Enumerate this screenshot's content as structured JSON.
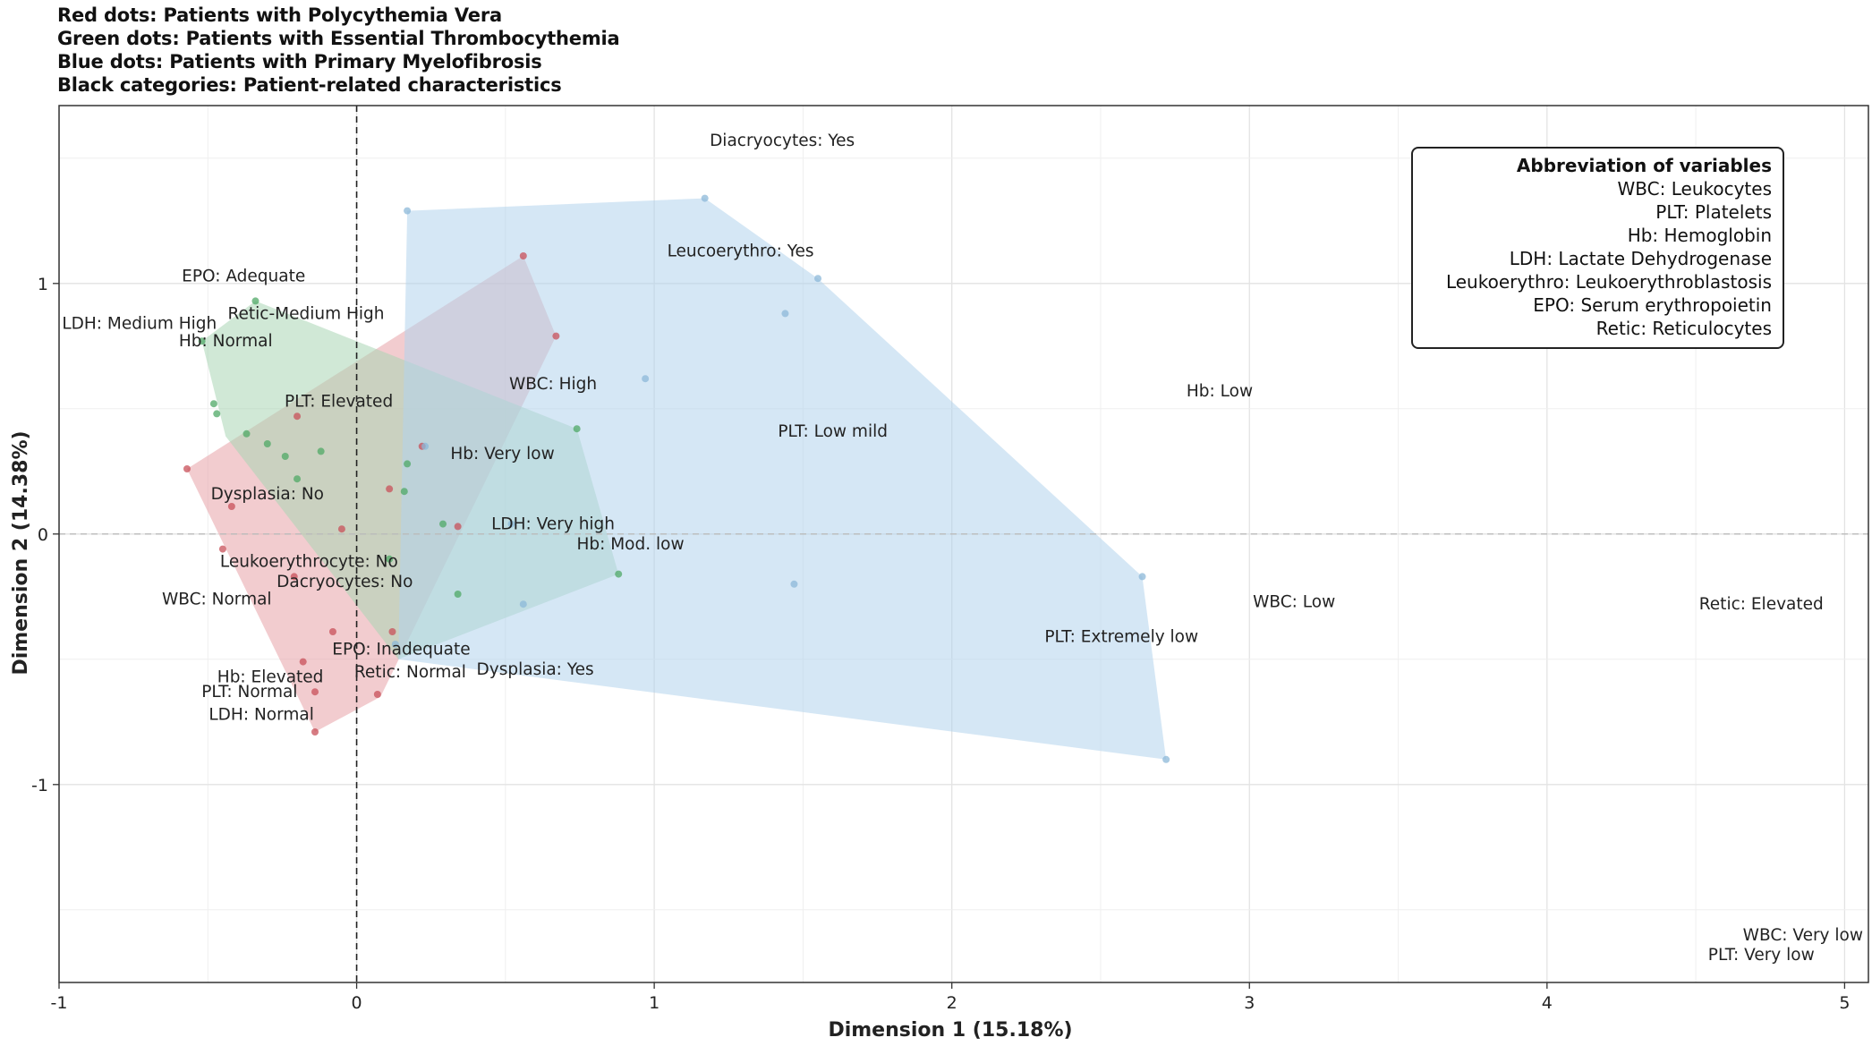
{
  "header": {
    "line1": "Red dots: Patients with Polycythemia Vera",
    "line2": "Green dots: Patients with Essential Thrombocythemia",
    "line3": "Blue dots: Patients with Primary Myelofibrosis",
    "line4": "Black categories: Patient-related characteristics"
  },
  "legend": {
    "title": "Abbreviation of variables",
    "items": [
      {
        "abbr": "WBC",
        "text": "WBC: Leukocytes"
      },
      {
        "abbr": "PLT",
        "text": "PLT: Platelets"
      },
      {
        "abbr": "Hb",
        "text": "Hb: Hemoglobin"
      },
      {
        "abbr": "LDH",
        "text": "LDH: Lactate Dehydrogenase"
      },
      {
        "abbr": "Leukoerythro",
        "text": "Leukoerythro: Leukoerythroblastosis"
      },
      {
        "abbr": "EPO",
        "text": "EPO: Serum erythropoietin"
      },
      {
        "abbr": "Retic",
        "text": "Retic: Reticulocytes"
      }
    ]
  },
  "colors": {
    "red": "#e8a3a8",
    "green": "#a9d6b4",
    "blue": "#b3d4ec",
    "red_dot": "#c8505a",
    "green_dot": "#4fa865",
    "blue_dot": "#8cb8d8"
  },
  "chart_data": {
    "type": "scatter",
    "xlabel": "Dimension 1 (15.18%)",
    "ylabel": "Dimension 2 (14.38%)",
    "xlim": [
      -1,
      5.08
    ],
    "ylim": [
      -1.79,
      1.71
    ],
    "xticks": [
      -1,
      0,
      1,
      2,
      3,
      4,
      5
    ],
    "yticks": [
      -1,
      0,
      1
    ],
    "grid": true,
    "reference_lines": {
      "x": 0,
      "y": 0
    },
    "hulls": [
      {
        "name": "Polycythemia Vera",
        "color_key": "red",
        "points": [
          [
            -0.57,
            0.26
          ],
          [
            0.56,
            1.11
          ],
          [
            0.67,
            0.79
          ],
          [
            0.08,
            -0.65
          ],
          [
            -0.14,
            -0.79
          ]
        ]
      },
      {
        "name": "Essential Thrombocythemia",
        "color_key": "green",
        "points": [
          [
            -0.52,
            0.77
          ],
          [
            -0.34,
            0.93
          ],
          [
            0.74,
            0.42
          ],
          [
            0.88,
            -0.16
          ],
          [
            0.14,
            -0.5
          ],
          [
            -0.44,
            0.39
          ]
        ]
      },
      {
        "name": "Primary Myelofibrosis",
        "color_key": "blue",
        "points": [
          [
            0.17,
            1.29
          ],
          [
            1.17,
            1.34
          ],
          [
            1.55,
            1.02
          ],
          [
            2.64,
            -0.17
          ],
          [
            2.72,
            -0.9
          ],
          [
            0.14,
            -0.5
          ]
        ]
      }
    ],
    "patients": [
      {
        "group": "red",
        "points": [
          [
            -0.57,
            0.26
          ],
          [
            0.56,
            1.11
          ],
          [
            0.67,
            0.79
          ],
          [
            -0.14,
            -0.79
          ],
          [
            0.07,
            -0.64
          ],
          [
            -0.45,
            -0.06
          ],
          [
            -0.42,
            0.11
          ],
          [
            -0.21,
            -0.17
          ],
          [
            -0.08,
            -0.39
          ],
          [
            0.12,
            -0.39
          ],
          [
            -0.18,
            -0.51
          ],
          [
            0.11,
            0.18
          ],
          [
            -0.05,
            0.02
          ],
          [
            0.34,
            0.03
          ],
          [
            -0.14,
            -0.63
          ],
          [
            -0.2,
            0.47
          ],
          [
            0.22,
            0.35
          ]
        ]
      },
      {
        "group": "green",
        "points": [
          [
            -0.34,
            0.93
          ],
          [
            -0.52,
            0.77
          ],
          [
            -0.48,
            0.52
          ],
          [
            -0.47,
            0.48
          ],
          [
            0.74,
            0.42
          ],
          [
            0.88,
            -0.16
          ],
          [
            0.11,
            -0.1
          ],
          [
            0.29,
            0.04
          ],
          [
            0.34,
            -0.24
          ],
          [
            -0.24,
            0.31
          ],
          [
            -0.12,
            0.33
          ],
          [
            -0.3,
            0.36
          ],
          [
            -0.2,
            0.22
          ],
          [
            0.16,
            0.17
          ],
          [
            0.17,
            0.28
          ],
          [
            -0.37,
            0.4
          ]
        ]
      },
      {
        "group": "blue",
        "points": [
          [
            0.17,
            1.29
          ],
          [
            1.17,
            1.34
          ],
          [
            1.55,
            1.02
          ],
          [
            1.44,
            0.88
          ],
          [
            0.97,
            0.62
          ],
          [
            2.64,
            -0.17
          ],
          [
            2.72,
            -0.9
          ],
          [
            1.47,
            -0.2
          ],
          [
            0.56,
            -0.28
          ],
          [
            0.13,
            -0.44
          ],
          [
            0.52,
            0.04
          ],
          [
            0.23,
            0.35
          ]
        ]
      }
    ],
    "categories": [
      {
        "text": "Diacryocytes: Yes",
        "x": 1.43,
        "y": 1.57
      },
      {
        "text": "Leucoerythro: Yes",
        "x": 1.29,
        "y": 1.13
      },
      {
        "text": "EPO: Adequate",
        "x": -0.38,
        "y": 1.03
      },
      {
        "text": "Retic-Medium High",
        "x": -0.17,
        "y": 0.88
      },
      {
        "text": "LDH: Medium High",
        "x": -0.73,
        "y": 0.84
      },
      {
        "text": "Hb: Normal",
        "x": -0.44,
        "y": 0.77
      },
      {
        "text": "PLT: Elevated",
        "x": -0.06,
        "y": 0.53
      },
      {
        "text": "WBC: High",
        "x": 0.66,
        "y": 0.6
      },
      {
        "text": "PLT: Low mild",
        "x": 1.6,
        "y": 0.41
      },
      {
        "text": "Hb: Low",
        "x": 2.9,
        "y": 0.57
      },
      {
        "text": "Hb: Very low",
        "x": 0.49,
        "y": 0.32
      },
      {
        "text": "Dysplasia: No",
        "x": -0.3,
        "y": 0.16
      },
      {
        "text": "LDH: Very high",
        "x": 0.66,
        "y": 0.04
      },
      {
        "text": "Hb: Mod. low",
        "x": 0.92,
        "y": -0.04
      },
      {
        "text": "Leukoerythrocyte: No",
        "x": -0.16,
        "y": -0.11
      },
      {
        "text": "Dacryocytes: No",
        "x": -0.04,
        "y": -0.19
      },
      {
        "text": "WBC: Normal",
        "x": -0.47,
        "y": -0.26
      },
      {
        "text": "WBC: Low",
        "x": 3.15,
        "y": -0.27
      },
      {
        "text": "Retic: Elevated",
        "x": 4.72,
        "y": -0.28
      },
      {
        "text": "PLT: Extremely low",
        "x": 2.57,
        "y": -0.41
      },
      {
        "text": "EPO: Inadequate",
        "x": 0.15,
        "y": -0.46
      },
      {
        "text": "Dysplasia: Yes",
        "x": 0.6,
        "y": -0.54
      },
      {
        "text": "Retic: Normal",
        "x": 0.18,
        "y": -0.55
      },
      {
        "text": "Hb: Elevated",
        "x": -0.29,
        "y": -0.57
      },
      {
        "text": "PLT: Normal",
        "x": -0.36,
        "y": -0.63
      },
      {
        "text": "LDH: Normal",
        "x": -0.32,
        "y": -0.72
      },
      {
        "text": "WBC: Very low",
        "x": 4.86,
        "y": -1.6
      },
      {
        "text": "PLT: Very low",
        "x": 4.72,
        "y": -1.68
      }
    ]
  }
}
